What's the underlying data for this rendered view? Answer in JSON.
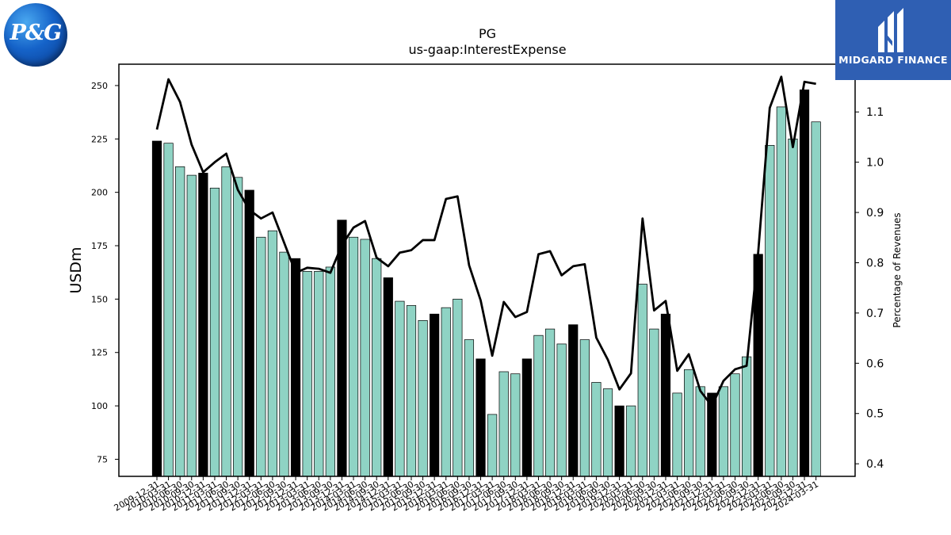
{
  "header": {
    "ticker": "PG",
    "metric": "us-gaap:InterestExpense"
  },
  "logos": {
    "left_text": "P&G",
    "right_text": "MIDGARD FINANCE"
  },
  "colors": {
    "annual_bar": "#000000",
    "quarter_bar": "#8fd3c4",
    "line": "#000000",
    "watermark_bg": "#2f5fb3"
  },
  "chart_data": {
    "type": "bar",
    "title": "PG",
    "subtitle": "us-gaap:InterestExpense",
    "ylabel": "USDm",
    "y2label": "Percentage of Revenues",
    "ylim": [
      67,
      260
    ],
    "y2lim": [
      0.375,
      1.195
    ],
    "yticks": [
      75,
      100,
      125,
      150,
      175,
      200,
      225,
      250
    ],
    "y2ticks": [
      0.4,
      0.5,
      0.6,
      0.7,
      0.8,
      0.9,
      1.0,
      1.1
    ],
    "categories": [
      "2009-12-31",
      "2010-03-31",
      "2010-06-30",
      "2010-09-30",
      "2010-12-31",
      "2011-03-31",
      "2011-06-30",
      "2011-09-30",
      "2011-12-31",
      "2012-03-31",
      "2012-06-30",
      "2012-09-30",
      "2012-12-31",
      "2013-03-31",
      "2013-06-30",
      "2013-09-30",
      "2013-12-31",
      "2014-03-31",
      "2014-06-30",
      "2014-09-30",
      "2014-12-31",
      "2015-03-31",
      "2015-06-30",
      "2015-09-30",
      "2015-12-31",
      "2016-03-31",
      "2016-06-30",
      "2016-09-30",
      "2016-12-31",
      "2017-03-31",
      "2017-06-30",
      "2017-09-30",
      "2017-12-31",
      "2018-03-31",
      "2018-06-30",
      "2018-09-30",
      "2018-12-31",
      "2019-03-31",
      "2019-06-30",
      "2019-09-30",
      "2019-12-31",
      "2020-03-31",
      "2020-06-30",
      "2020-09-30",
      "2020-12-31",
      "2021-03-31",
      "2021-06-30",
      "2021-09-30",
      "2021-12-31",
      "2022-03-31",
      "2022-06-30",
      "2022-09-30",
      "2022-12-31",
      "2023-03-31",
      "2023-06-30",
      "2023-09-30",
      "2023-12-31",
      "2024-03-31"
    ],
    "tick_labels": [
      "2009-12-31",
      "2010-03-31",
      "2010-06-30",
      "2010-09-30",
      "2010-12-31",
      "2011-03-31",
      "2011-06-30",
      "2011-09-30",
      "2011-12-31",
      "2012-03-31",
      "2012-06-30",
      "2012-09-30",
      "2012-12-31",
      "2013-03-31",
      "2013-06-30",
      "2013-09-30",
      "2013-12-31",
      "2014-03-31",
      "2014-06-30",
      "2014-09-30",
      "2014-12-31",
      "2015-03-31",
      "2015-06-30",
      "2015-09-30",
      "2015-12-31",
      "2016-03-31",
      "2016-06-30",
      "2016-09-30",
      "2016-12-31",
      "2017-03-31",
      "2017-06-30",
      "2017-09-30",
      "2017-12-31",
      "2018-03-31",
      "2018-06-30",
      "2018-09-30",
      "2018-12-31",
      "2019-03-31",
      "2019-06-30",
      "2019-09-30",
      "2019-12-31",
      "2020-03-31",
      "2020-06-30",
      "2020-09-30",
      "2020-12-31",
      "2021-03-31",
      "2021-06-30",
      "2021-09-30",
      "2021-12-31",
      "2022-03-31",
      "2022-06-30",
      "2022-09-30",
      "2022-12-31",
      "2023-03-31",
      "2023-06-30",
      "2023-09-30",
      "2023-12-31",
      "2024-03-31"
    ],
    "series": [
      {
        "role": "bars",
        "values": [
          224,
          223,
          212,
          208,
          209,
          202,
          212,
          207,
          201,
          179,
          182,
          172,
          169,
          163,
          163,
          165,
          187,
          179,
          178,
          169,
          160,
          149,
          147,
          140,
          143,
          146,
          150,
          131,
          122,
          96,
          116,
          115,
          122,
          133,
          136,
          129,
          138,
          131,
          111,
          108,
          100,
          100,
          157,
          136,
          143,
          106,
          117,
          109,
          106,
          109,
          115,
          123,
          171,
          222,
          240,
          225,
          248,
          233
        ],
        "annual": [
          true,
          false,
          false,
          false,
          true,
          false,
          false,
          false,
          true,
          false,
          false,
          false,
          true,
          false,
          false,
          false,
          true,
          false,
          false,
          false,
          true,
          false,
          false,
          false,
          true,
          false,
          false,
          false,
          true,
          false,
          false,
          false,
          true,
          false,
          false,
          false,
          true,
          false,
          false,
          false,
          true,
          false,
          false,
          false,
          true,
          false,
          false,
          false,
          true,
          false,
          false,
          false,
          true,
          false,
          false,
          false,
          true,
          false
        ]
      },
      {
        "role": "line",
        "values": [
          1.065,
          1.165,
          1.12,
          1.035,
          0.98,
          1.0,
          1.017,
          0.945,
          0.905,
          0.888,
          0.9,
          0.84,
          0.78,
          0.79,
          0.788,
          0.78,
          0.835,
          0.87,
          0.883,
          0.81,
          0.793,
          0.82,
          0.825,
          0.845,
          0.845,
          0.927,
          0.932,
          0.795,
          0.725,
          0.615,
          0.722,
          0.692,
          0.702,
          0.817,
          0.823,
          0.775,
          0.793,
          0.797,
          0.651,
          0.607,
          0.548,
          0.58,
          0.888,
          0.705,
          0.724,
          0.585,
          0.618,
          0.545,
          0.515,
          0.565,
          0.588,
          0.595,
          0.82,
          1.108,
          1.17,
          1.03,
          1.16,
          1.156
        ]
      }
    ]
  }
}
